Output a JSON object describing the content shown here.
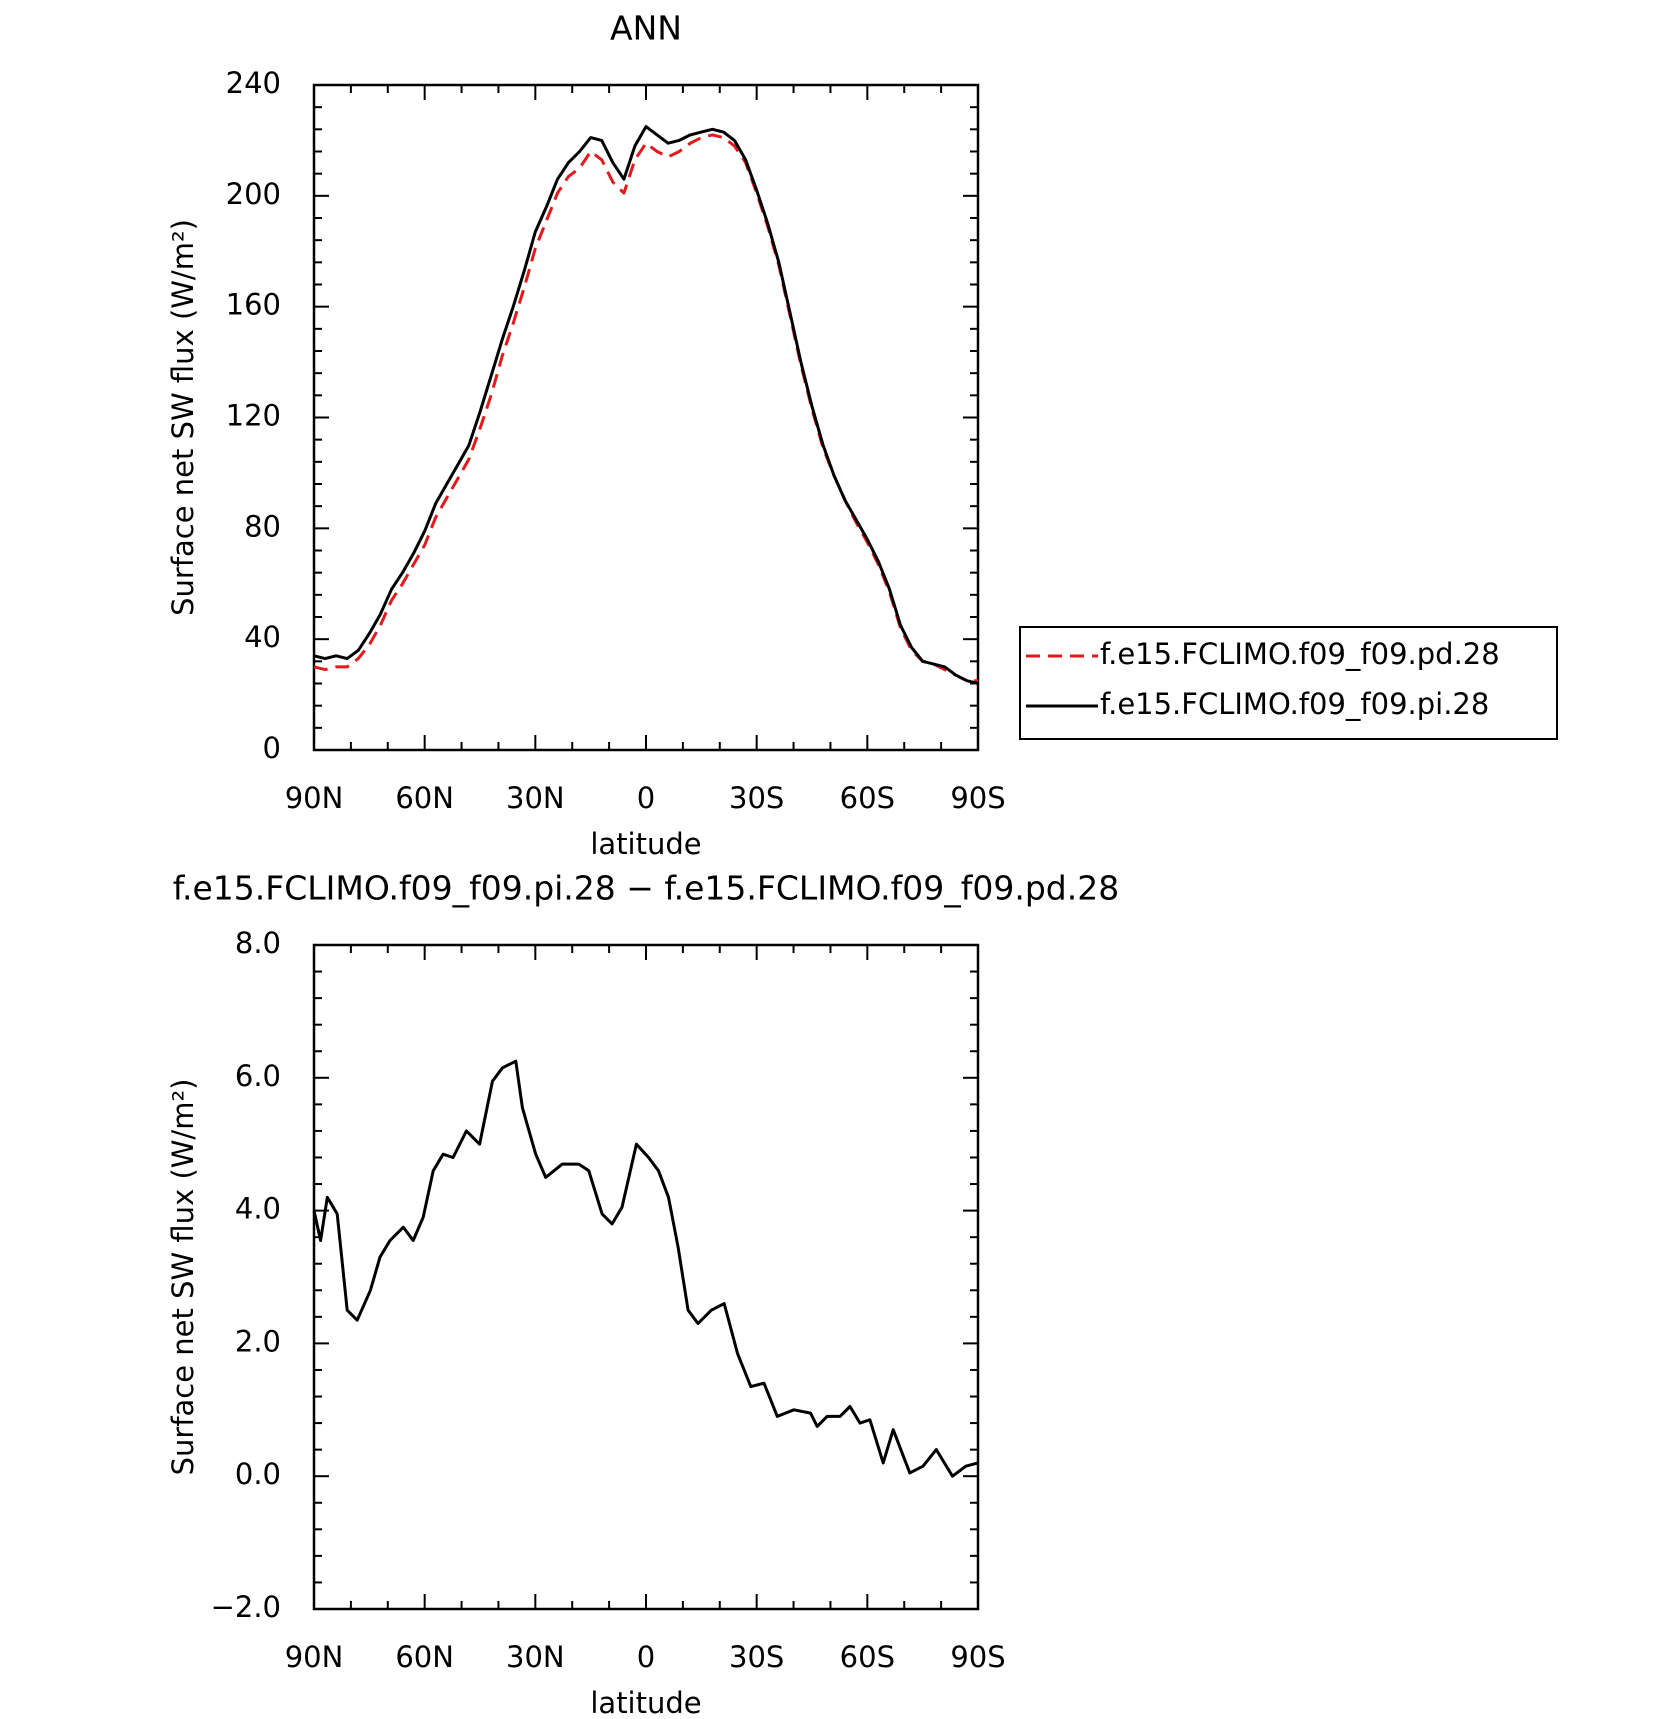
{
  "chart_data": [
    {
      "type": "line",
      "title": "ANN",
      "xlabel": "latitude",
      "ylabel": "Surface net SW flux (W/m²)",
      "x": [
        90,
        87,
        84,
        81,
        78,
        75,
        72,
        69,
        66,
        63,
        60,
        57,
        54,
        51,
        48,
        45,
        42,
        39,
        36,
        33,
        30,
        27,
        24,
        21,
        18,
        15,
        12,
        9,
        6,
        3,
        0,
        -3,
        -6,
        -9,
        -12,
        -15,
        -18,
        -21,
        -24,
        -27,
        -30,
        -33,
        -36,
        -39,
        -42,
        -45,
        -48,
        -51,
        -54,
        -57,
        -60,
        -63,
        -66,
        -69,
        -72,
        -75,
        -78,
        -81,
        -84,
        -87,
        -90
      ],
      "xlim": [
        90,
        -90
      ],
      "xticks": [
        {
          "value": 90,
          "label": "90N"
        },
        {
          "value": 60,
          "label": "60N"
        },
        {
          "value": 30,
          "label": "30N"
        },
        0,
        {
          "value": -30,
          "label": "30S"
        },
        {
          "value": -60,
          "label": "60S"
        },
        {
          "value": -90,
          "label": "90S"
        }
      ],
      "ylim": [
        0,
        240
      ],
      "yticks": [
        0,
        40,
        80,
        120,
        160,
        200,
        240
      ],
      "legend": "right",
      "series": [
        {
          "name": "f.e15.FCLIMO.f09_f09.pd.28",
          "color": "#e31a1c",
          "dash": true,
          "values": [
            30,
            29,
            30,
            30,
            33,
            38,
            45,
            54,
            60,
            67,
            74,
            84,
            91,
            98,
            105,
            116,
            128,
            142,
            154,
            167,
            181,
            191,
            201,
            207,
            210,
            216,
            213,
            205,
            201,
            213,
            219,
            216,
            214,
            216,
            219,
            221,
            222,
            221,
            218,
            212,
            201,
            189,
            175,
            157,
            139,
            123,
            109,
            99,
            90,
            82,
            75,
            67,
            57,
            44,
            36,
            32,
            31,
            29,
            27,
            25,
            25
          ]
        },
        {
          "name": "f.e15.FCLIMO.f09_f09.pi.28",
          "color": "#000000",
          "dash": false,
          "values": [
            34,
            33,
            34,
            33,
            36,
            42,
            49,
            58,
            64,
            71,
            79,
            89,
            96,
            103,
            110,
            122,
            135,
            148,
            160,
            173,
            187,
            196,
            206,
            212,
            216,
            221,
            220,
            212,
            206,
            218,
            225,
            222,
            219,
            220,
            222,
            223,
            224,
            223,
            220,
            213,
            202,
            190,
            176,
            158,
            140,
            124,
            110,
            99,
            90,
            83,
            76,
            68,
            58,
            45,
            37,
            32,
            31,
            30,
            27,
            25,
            24
          ]
        }
      ]
    },
    {
      "type": "line",
      "title": "f.e15.FCLIMO.f09_f09.pi.28 − f.e15.FCLIMO.f09_f09.pd.28",
      "xlabel": "latitude",
      "ylabel": "Surface net SW flux (W/m²)",
      "x": [
        90,
        88.2,
        86.4,
        83.7,
        81.0,
        78.3,
        74.7,
        72.1,
        69.4,
        65.8,
        63.1,
        60.4,
        57.7,
        55.0,
        52.3,
        48.7,
        45.1,
        41.6,
        38.9,
        35.3,
        33.5,
        29.9,
        27.2,
        22.7,
        18.2,
        15.5,
        11.9,
        9.2,
        6.5,
        2.6,
        -0.7,
        -3.4,
        -6.1,
        -8.7,
        -11.4,
        -14.1,
        -17.7,
        -21.2,
        -24.8,
        -28.4,
        -32.0,
        -35.6,
        -40.1,
        -44.6,
        -46.4,
        -49.1,
        -52.6,
        -55.3,
        -58.0,
        -60.7,
        -64.3,
        -67.0,
        -71.5,
        -75.1,
        -78.7,
        -83.1,
        -86.7,
        -90
      ],
      "xlim": [
        90,
        -90
      ],
      "xticks": [
        {
          "value": 90,
          "label": "90N"
        },
        {
          "value": 60,
          "label": "60N"
        },
        {
          "value": 30,
          "label": "30N"
        },
        0,
        {
          "value": -30,
          "label": "30S"
        },
        {
          "value": -60,
          "label": "60S"
        },
        {
          "value": -90,
          "label": "90S"
        }
      ],
      "ylim": [
        -2,
        8
      ],
      "yticks": [
        {
          "value": -2,
          "label": "−2.0"
        },
        {
          "value": 0,
          "label": "0.0"
        },
        {
          "value": 2,
          "label": "2.0"
        },
        {
          "value": 4,
          "label": "4.0"
        },
        {
          "value": 6,
          "label": "6.0"
        },
        {
          "value": 8,
          "label": "8.0"
        }
      ],
      "color": "#000000",
      "values": [
        4.0,
        3.55,
        4.2,
        3.95,
        2.5,
        2.35,
        2.8,
        3.3,
        3.55,
        3.75,
        3.55,
        3.9,
        4.6,
        4.85,
        4.8,
        5.2,
        5.0,
        5.95,
        6.15,
        6.25,
        5.55,
        4.85,
        4.5,
        4.7,
        4.7,
        4.6,
        3.95,
        3.8,
        4.05,
        5.0,
        4.8,
        4.6,
        4.2,
        3.45,
        2.5,
        2.3,
        2.5,
        2.6,
        1.85,
        1.35,
        1.4,
        0.9,
        1.0,
        0.95,
        0.75,
        0.9,
        0.9,
        1.05,
        0.8,
        0.85,
        0.2,
        0.7,
        0.05,
        0.15,
        0.4,
        0.0,
        0.15,
        0.2
      ]
    }
  ]
}
